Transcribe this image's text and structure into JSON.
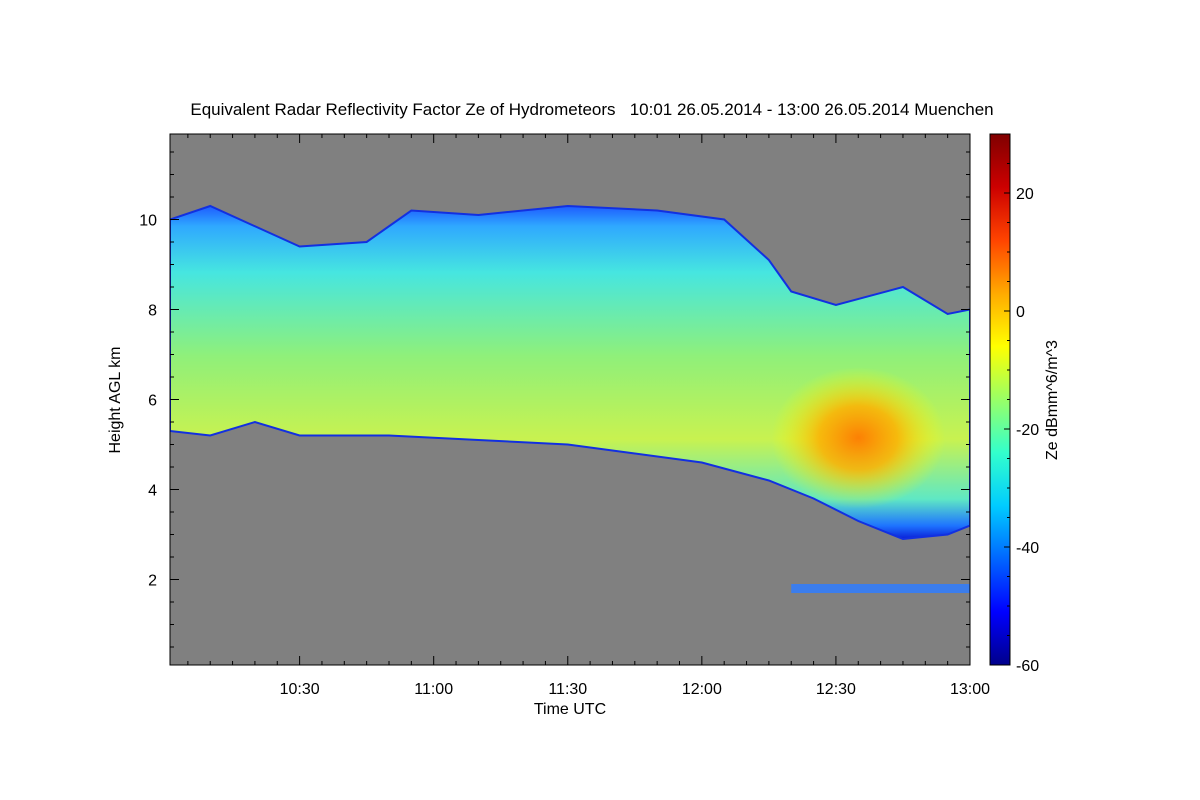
{
  "colors": {
    "background_gray": "#808080",
    "colormap": [
      "#00008a",
      "#0000ff",
      "#0066ff",
      "#00ccff",
      "#33ffcc",
      "#99ff66",
      "#ffff00",
      "#ffaa00",
      "#ff4400",
      "#cc0000",
      "#800000"
    ]
  },
  "chart_data": {
    "type": "heatmap",
    "title": "Equivalent Radar Reflectivity Factor Ze of Hydrometeors   10:01 26.05.2014 - 13:00 26.05.2014 Muenchen",
    "xlabel": "Time UTC",
    "ylabel": "Height AGL km",
    "colorbar_label": "Ze dBmm^6/m^3",
    "xlim": [
      "10:01",
      "13:00"
    ],
    "ylim": [
      0.1,
      11.9
    ],
    "x_ticks": [
      "10:30",
      "11:00",
      "11:30",
      "12:00",
      "12:30",
      "13:00"
    ],
    "y_ticks": [
      2,
      4,
      6,
      8,
      10
    ],
    "colorbar_range": [
      -60,
      30
    ],
    "colorbar_ticks": [
      -60,
      -40,
      -20,
      0,
      20
    ],
    "cloud_layer": {
      "top_km": [
        [
          "10:01",
          10.0
        ],
        [
          "10:10",
          10.3
        ],
        [
          "10:30",
          9.4
        ],
        [
          "10:45",
          9.5
        ],
        [
          "10:55",
          10.2
        ],
        [
          "11:10",
          10.1
        ],
        [
          "11:30",
          10.3
        ],
        [
          "11:50",
          10.2
        ],
        [
          "12:05",
          10.0
        ],
        [
          "12:15",
          9.1
        ],
        [
          "12:20",
          8.4
        ],
        [
          "12:30",
          8.1
        ],
        [
          "12:45",
          8.5
        ],
        [
          "12:55",
          7.9
        ],
        [
          "13:00",
          8.0
        ]
      ],
      "base_km": [
        [
          "10:01",
          5.3
        ],
        [
          "10:10",
          5.2
        ],
        [
          "10:20",
          5.5
        ],
        [
          "10:30",
          5.2
        ],
        [
          "10:50",
          5.2
        ],
        [
          "11:10",
          5.1
        ],
        [
          "11:30",
          5.0
        ],
        [
          "11:45",
          4.8
        ],
        [
          "12:00",
          4.6
        ],
        [
          "12:15",
          4.2
        ],
        [
          "12:25",
          3.8
        ],
        [
          "12:35",
          3.3
        ],
        [
          "12:45",
          2.9
        ],
        [
          "12:55",
          3.0
        ],
        [
          "13:00",
          3.2
        ]
      ]
    },
    "high_reflectivity_core": {
      "time_range": [
        "12:20",
        "12:50"
      ],
      "height_range_km": [
        3.8,
        6.5
      ],
      "max_ze": 5
    },
    "low_layer_band": {
      "time_range": [
        "12:20",
        "13:00"
      ],
      "height_range_km": [
        1.7,
        1.9
      ]
    }
  }
}
